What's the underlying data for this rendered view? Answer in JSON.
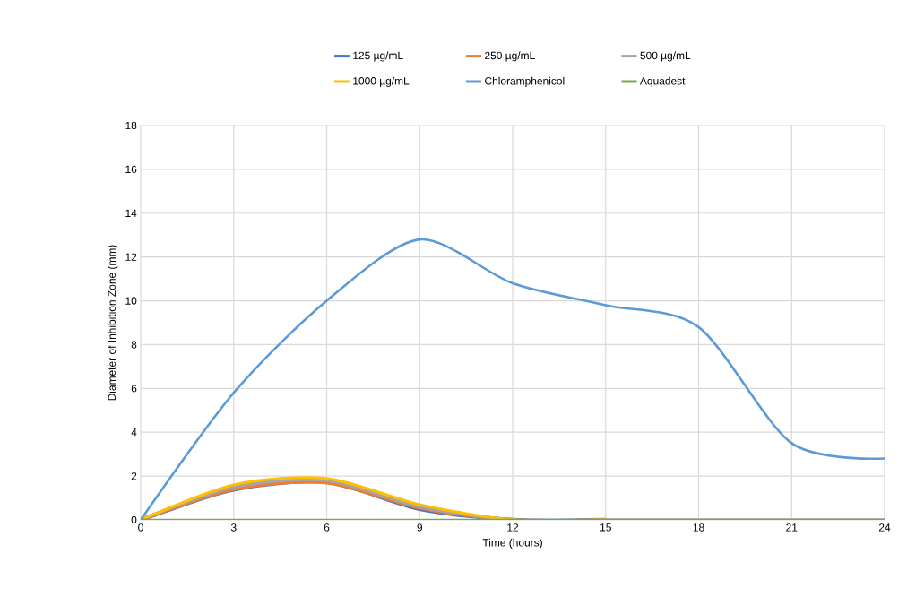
{
  "chart_data": {
    "type": "line",
    "xlabel": "Time (hours)",
    "ylabel": "Diameter of Inhibition Zone (mm)",
    "x": [
      0,
      3,
      6,
      9,
      12,
      15,
      18,
      21,
      24
    ],
    "series": [
      {
        "name": "125 µg/mL",
        "color": "#4472c4",
        "values": [
          0,
          1.38,
          1.72,
          0.5,
          0,
          0,
          null,
          null,
          null
        ]
      },
      {
        "name": "250 µg/mL",
        "color": "#ed7d31",
        "values": [
          0,
          1.4,
          1.7,
          0.55,
          0,
          0,
          null,
          null,
          null
        ]
      },
      {
        "name": "500 µg/mL",
        "color": "#a5a5a5",
        "values": [
          0,
          1.5,
          1.8,
          0.6,
          0,
          0,
          0,
          0,
          0
        ]
      },
      {
        "name": "1000 µg/mL",
        "color": "#ffc000",
        "values": [
          0,
          1.6,
          1.89,
          0.7,
          0,
          0,
          null,
          null,
          null
        ]
      },
      {
        "name": "Chloramphenicol",
        "color": "#5b9bd5",
        "values": [
          0,
          5.8,
          10.0,
          12.8,
          10.8,
          9.8,
          8.8,
          3.5,
          2.8
        ]
      },
      {
        "name": "Aquadest",
        "color": "#70ad47",
        "values": [
          0,
          0,
          0,
          0,
          0,
          0,
          0,
          0,
          0
        ]
      }
    ],
    "xlim": [
      0,
      24
    ],
    "ylim": [
      0,
      18
    ],
    "xticks": [
      0,
      3,
      6,
      9,
      12,
      15,
      18,
      21,
      24
    ],
    "yticks": [
      0,
      2,
      4,
      6,
      8,
      10,
      12,
      14,
      16,
      18
    ],
    "grid": true,
    "legend": "top",
    "marker": "none",
    "line_style": "solid"
  }
}
